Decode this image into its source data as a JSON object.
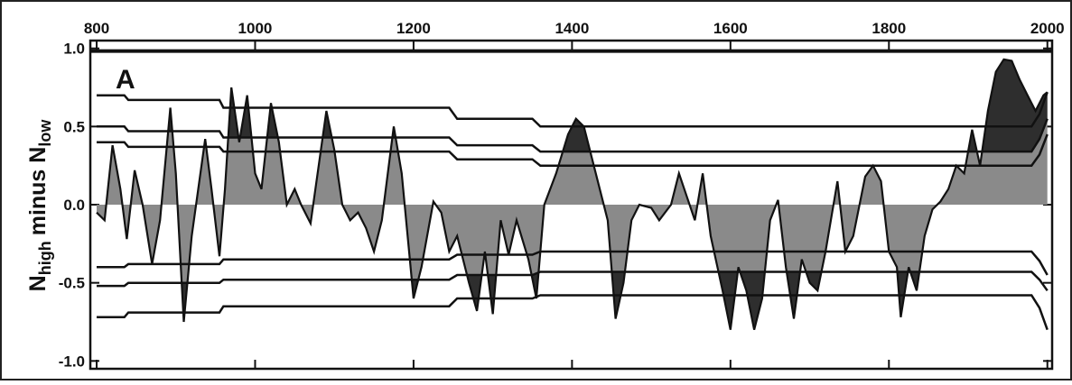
{
  "chart_data": {
    "type": "area",
    "panel_label": "A",
    "ylabel": [
      "N",
      "high",
      "minus N",
      "low"
    ],
    "xlim": [
      792,
      2006
    ],
    "ylim": [
      -1.05,
      1.05
    ],
    "xticks": [
      800,
      1000,
      1200,
      1400,
      1600,
      1800,
      2000
    ],
    "yticks": [
      {
        "value": -1,
        "label": "-1.0"
      },
      {
        "value": -0.5,
        "label": "-0.5"
      },
      {
        "value": 0,
        "label": "0.0"
      },
      {
        "value": 0.5,
        "label": "0.5"
      },
      {
        "value": 1,
        "label": "1.0"
      }
    ],
    "fill_color": "#8a8a8a",
    "dark_color": "#2e2e2e",
    "line_color": "#111111",
    "x": [
      800,
      810,
      820,
      830,
      838,
      848,
      858,
      870,
      880,
      893,
      900,
      910,
      920,
      937,
      945,
      955,
      962,
      970,
      980,
      990,
      1000,
      1008,
      1020,
      1030,
      1040,
      1050,
      1058,
      1070,
      1090,
      1100,
      1110,
      1120,
      1130,
      1140,
      1150,
      1160,
      1175,
      1185,
      1200,
      1210,
      1225,
      1235,
      1245,
      1255,
      1270,
      1280,
      1290,
      1300,
      1310,
      1320,
      1330,
      1345,
      1355,
      1365,
      1380,
      1395,
      1405,
      1415,
      1430,
      1445,
      1455,
      1465,
      1475,
      1485,
      1500,
      1510,
      1525,
      1535,
      1545,
      1555,
      1565,
      1575,
      1590,
      1600,
      1610,
      1620,
      1630,
      1640,
      1650,
      1660,
      1670,
      1680,
      1690,
      1700,
      1710,
      1720,
      1735,
      1745,
      1755,
      1770,
      1780,
      1790,
      1800,
      1810,
      1815,
      1825,
      1835,
      1845,
      1855,
      1865,
      1875,
      1885,
      1895,
      1905,
      1915,
      1925,
      1935,
      1945,
      1955,
      1965,
      1975,
      1985,
      1995,
      2000
    ],
    "values": [
      -0.05,
      -0.1,
      0.38,
      0.1,
      -0.22,
      0.22,
      0.0,
      -0.38,
      -0.1,
      0.62,
      0.2,
      -0.75,
      -0.2,
      0.42,
      0.1,
      -0.33,
      0.1,
      0.75,
      0.4,
      0.7,
      0.2,
      0.1,
      0.65,
      0.4,
      0.0,
      0.1,
      0.0,
      -0.12,
      0.6,
      0.35,
      0.0,
      -0.1,
      -0.05,
      -0.15,
      -0.3,
      -0.1,
      0.5,
      0.2,
      -0.6,
      -0.4,
      0.02,
      -0.05,
      -0.3,
      -0.2,
      -0.5,
      -0.68,
      -0.3,
      -0.7,
      -0.1,
      -0.32,
      -0.1,
      -0.35,
      -0.6,
      0.0,
      0.2,
      0.45,
      0.55,
      0.5,
      0.2,
      -0.1,
      -0.73,
      -0.5,
      -0.1,
      0.0,
      -0.02,
      -0.1,
      0.0,
      0.2,
      0.05,
      -0.1,
      0.2,
      -0.2,
      -0.55,
      -0.8,
      -0.4,
      -0.55,
      -0.8,
      -0.6,
      -0.1,
      0.03,
      -0.4,
      -0.73,
      -0.35,
      -0.5,
      -0.55,
      -0.3,
      0.15,
      -0.3,
      -0.2,
      0.18,
      0.25,
      0.15,
      -0.3,
      -0.4,
      -0.72,
      -0.4,
      -0.55,
      -0.2,
      -0.03,
      0.02,
      0.1,
      0.25,
      0.2,
      0.48,
      0.25,
      0.6,
      0.85,
      0.93,
      0.92,
      0.8,
      0.7,
      0.6,
      0.7,
      0.72
    ],
    "thresholds": [
      {
        "x": [
          800,
          835,
          840,
          955,
          960,
          1245,
          1255,
          1350,
          1360,
          1980,
          1990,
          2000
        ],
        "values": [
          0.7,
          0.7,
          0.67,
          0.67,
          0.62,
          0.62,
          0.55,
          0.55,
          0.5,
          0.5,
          0.58,
          0.72
        ]
      },
      {
        "x": [
          800,
          835,
          840,
          955,
          960,
          1245,
          1255,
          1350,
          1360,
          1980,
          1990,
          2000
        ],
        "values": [
          0.5,
          0.5,
          0.47,
          0.47,
          0.43,
          0.43,
          0.38,
          0.38,
          0.34,
          0.34,
          0.42,
          0.55
        ]
      },
      {
        "x": [
          800,
          835,
          840,
          955,
          960,
          1245,
          1255,
          1350,
          1360,
          1980,
          1990,
          2000
        ],
        "values": [
          0.4,
          0.4,
          0.37,
          0.37,
          0.34,
          0.34,
          0.29,
          0.29,
          0.25,
          0.25,
          0.32,
          0.45
        ]
      },
      {
        "x": [
          800,
          835,
          840,
          955,
          960,
          1245,
          1255,
          1350,
          1360,
          1980,
          1990,
          2000
        ],
        "values": [
          -0.4,
          -0.4,
          -0.38,
          -0.38,
          -0.35,
          -0.35,
          -0.32,
          -0.32,
          -0.3,
          -0.3,
          -0.36,
          -0.45
        ]
      },
      {
        "x": [
          800,
          835,
          840,
          955,
          960,
          1245,
          1255,
          1350,
          1360,
          1980,
          1990,
          2000
        ],
        "values": [
          -0.52,
          -0.52,
          -0.5,
          -0.5,
          -0.48,
          -0.48,
          -0.45,
          -0.45,
          -0.43,
          -0.43,
          -0.48,
          -0.55
        ]
      },
      {
        "x": [
          800,
          835,
          840,
          955,
          960,
          1245,
          1255,
          1350,
          1360,
          1980,
          1990,
          2000
        ],
        "values": [
          -0.72,
          -0.72,
          -0.69,
          -0.69,
          -0.65,
          -0.65,
          -0.6,
          -0.6,
          -0.58,
          -0.58,
          -0.66,
          -0.8
        ]
      }
    ]
  }
}
